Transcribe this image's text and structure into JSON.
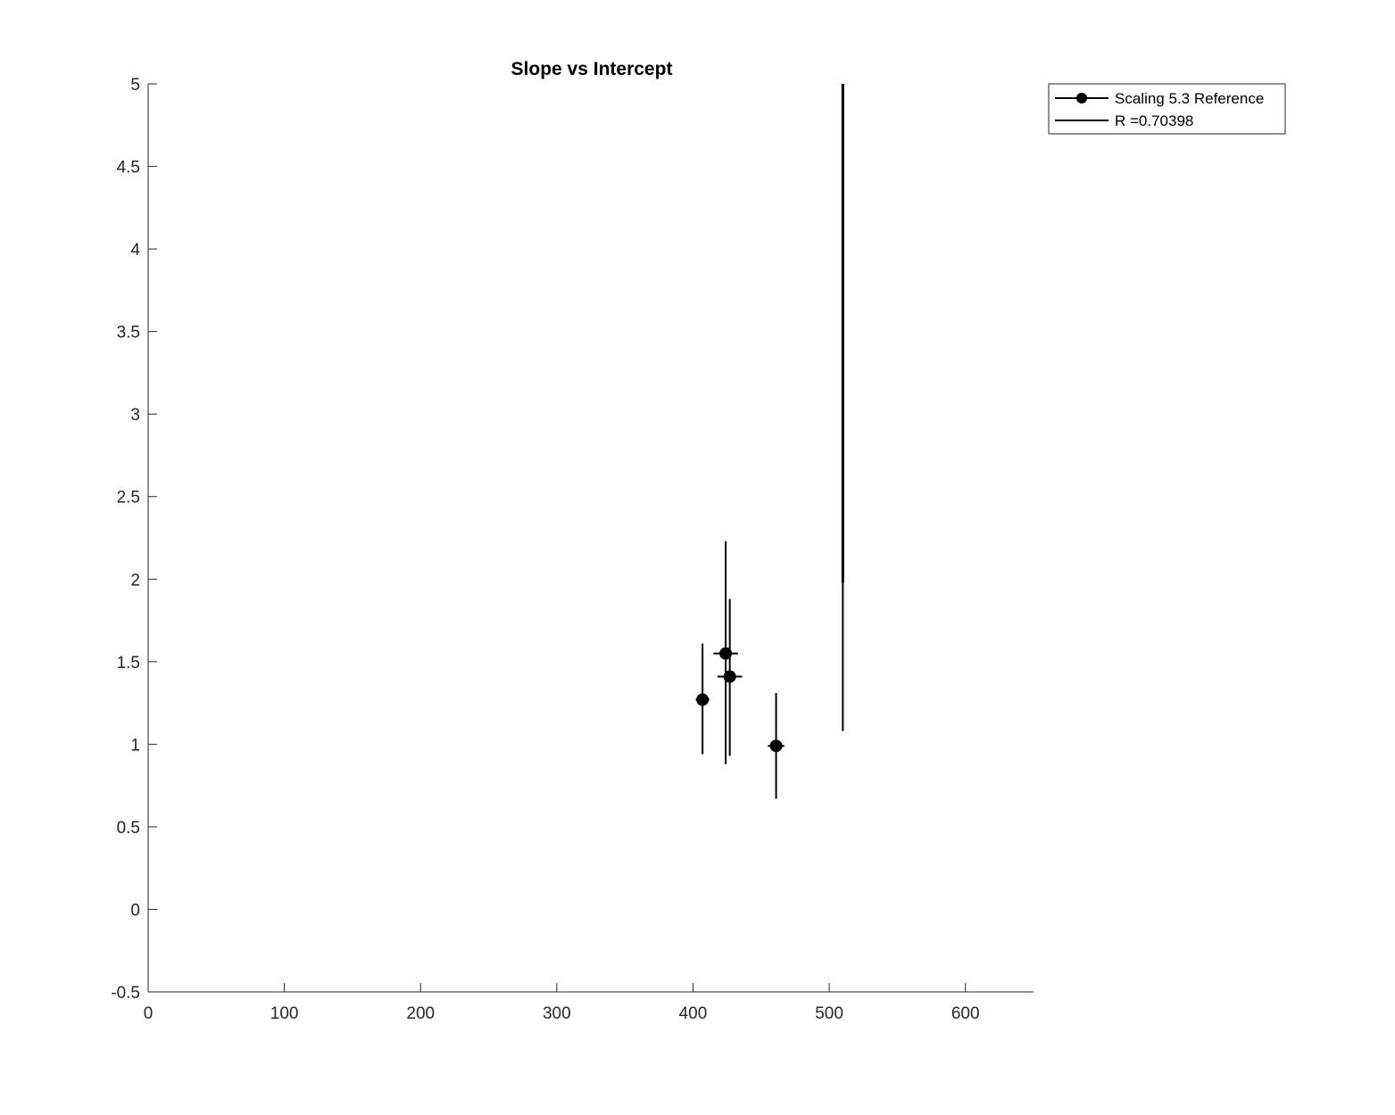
{
  "chart_data": {
    "type": "scatter",
    "title": "Slope vs Intercept",
    "xlabel": "",
    "ylabel": "",
    "xlim": [
      0,
      650
    ],
    "ylim": [
      -0.5,
      5
    ],
    "xticks": [
      0,
      100,
      200,
      300,
      400,
      500,
      600
    ],
    "xtick_labels": [
      "0",
      "100",
      "200",
      "300",
      "400",
      "500",
      "600"
    ],
    "yticks": [
      -0.5,
      0,
      0.5,
      1,
      1.5,
      2,
      2.5,
      3,
      3.5,
      4,
      4.5,
      5
    ],
    "ytick_labels": [
      "-0.5",
      "0",
      "0.5",
      "1",
      "1.5",
      "2",
      "2.5",
      "3",
      "3.5",
      "4",
      "4.5",
      "5"
    ],
    "grid": false,
    "legend_position": "top-right-outside",
    "series": [
      {
        "name": "Scaling 5.3 Reference",
        "style": "errorbar-markers",
        "color": "#000000",
        "points": [
          {
            "x": 407,
            "y": 1.27,
            "x_err": 5,
            "y_low": 0.94,
            "y_high": 1.61
          },
          {
            "x": 424,
            "y": 1.55,
            "x_err": 9,
            "y_low": 0.88,
            "y_high": 2.23
          },
          {
            "x": 427,
            "y": 1.41,
            "x_err": 9,
            "y_low": 0.93,
            "y_high": 1.88
          },
          {
            "x": 461,
            "y": 0.99,
            "x_err": 6,
            "y_low": 0.67,
            "y_high": 1.31
          }
        ]
      },
      {
        "name": "R =0.70398",
        "style": "line",
        "color": "#000000",
        "segments": [
          {
            "x": 510,
            "y_low": 1.98,
            "y_high": 5.0,
            "weight": "thick"
          },
          {
            "x": 510,
            "y_low": 1.08,
            "y_high": 1.98,
            "weight": "thin"
          }
        ]
      }
    ]
  }
}
